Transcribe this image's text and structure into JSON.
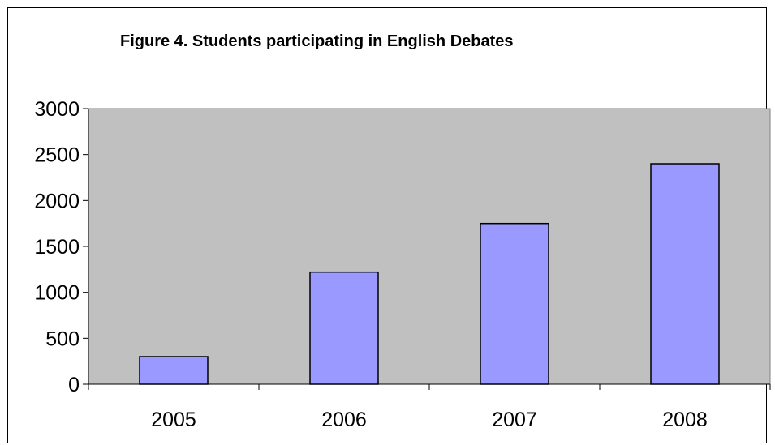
{
  "chart_data": {
    "type": "bar",
    "title": "Figure 4. Students participating in English Debates",
    "categories": [
      "2005",
      "2006",
      "2007",
      "2008"
    ],
    "values": [
      300,
      1220,
      1750,
      2400
    ],
    "ylim": [
      0,
      3000
    ],
    "yticks": [
      "0",
      "500",
      "1000",
      "1500",
      "2000",
      "2500",
      "3000"
    ],
    "xlabel": "",
    "ylabel": "",
    "grid": false,
    "legend": "none",
    "colors": {
      "plot_area": "#c0c0c0",
      "bar_fill": "#9999ff",
      "bar_stroke": "#000000"
    }
  }
}
